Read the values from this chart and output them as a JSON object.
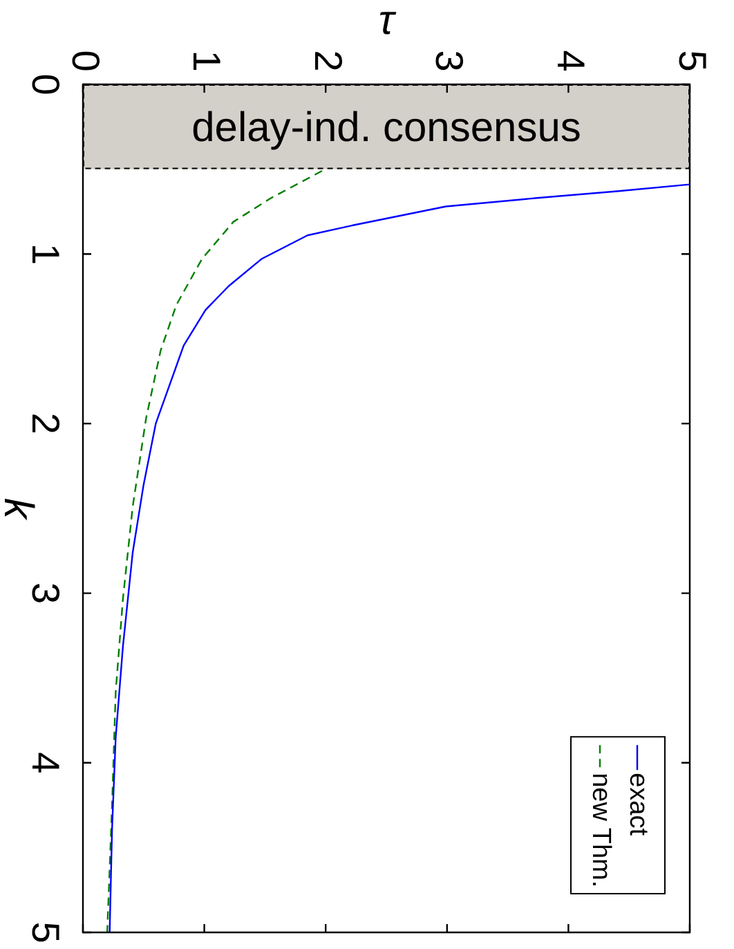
{
  "chart_data": {
    "type": "line",
    "xlabel": "τ",
    "ylabel": "k",
    "xlim": [
      0,
      5
    ],
    "xticks": [
      0,
      1,
      2,
      3,
      4,
      5
    ],
    "ylim": [
      5,
      0
    ],
    "yticks": [
      0,
      1,
      2,
      3,
      4,
      5
    ],
    "grid": false,
    "legend": "bottom right",
    "bands": [
      {
        "axis": "y",
        "from": 0,
        "to": 0.5,
        "label": "delay-ind. consensus",
        "color": "#d3cfc9"
      }
    ],
    "series": [
      {
        "name": "exact",
        "color": "#0000ff",
        "line_style": "solid",
        "x": [
          5,
          4.4,
          3.74,
          2.99,
          2.23,
          1.85,
          1.47,
          1.2,
          1.01,
          0.83,
          0.72,
          0.6,
          0.5,
          0.41,
          0.33,
          0.27,
          0.24,
          0.22
        ],
        "values": [
          0.59,
          0.63,
          0.67,
          0.72,
          0.83,
          0.89,
          1.03,
          1.19,
          1.33,
          1.54,
          1.76,
          2.0,
          2.36,
          2.76,
          3.31,
          3.85,
          4.39,
          5.0
        ]
      },
      {
        "name": "new Thm.",
        "color": "#008000",
        "line_style": "dashed",
        "x": [
          1.97,
          1.55,
          1.24,
          0.98,
          0.77,
          0.64,
          0.52,
          0.41,
          0.33,
          0.27,
          0.24,
          0.2
        ],
        "values": [
          0.51,
          0.67,
          0.81,
          1.03,
          1.3,
          1.57,
          1.97,
          2.49,
          3.03,
          3.58,
          4.25,
          5.0
        ]
      }
    ]
  }
}
